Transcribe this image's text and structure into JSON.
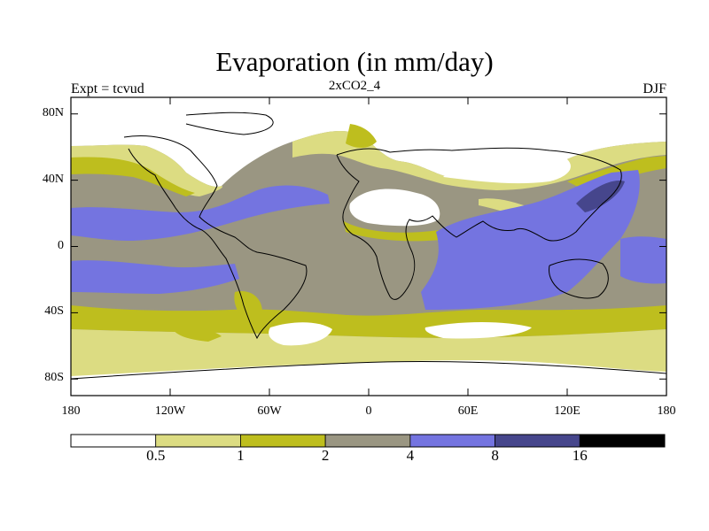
{
  "title": "Evaporation (in mm/day)",
  "subtitle": "2xCO2_4",
  "left_label": "Expt = tcvud",
  "right_label": "DJF",
  "map": {
    "lat_ticks": [
      "80N",
      "40N",
      "0",
      "40S",
      "80S"
    ],
    "lon_ticks": [
      "180",
      "120W",
      "60W",
      "0",
      "60E",
      "120E",
      "180"
    ],
    "projection": "cylindrical-equidistant",
    "coastlines": true
  },
  "colorbar": {
    "levels": [
      "0.5",
      "1",
      "2",
      "4",
      "8",
      "16"
    ],
    "colors": [
      "#ffffff",
      "#dcdc82",
      "#bebe1e",
      "#9a9682",
      "#7474e0",
      "#46468c",
      "#000000"
    ]
  }
}
